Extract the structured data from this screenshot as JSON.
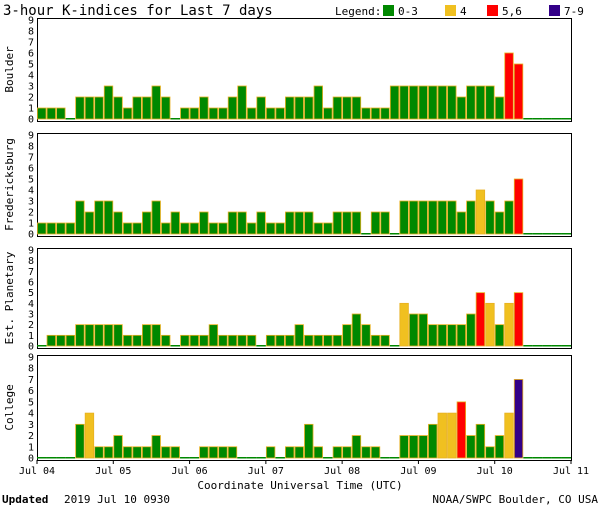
{
  "chart_data": {
    "type": "bar",
    "title": "3-hour K-indices for Last 7 days",
    "xlabel": "Coordinate Universal Time (UTC)",
    "ylim": [
      0,
      9
    ],
    "yticks": [
      "0",
      "1",
      "2",
      "3",
      "4",
      "5",
      "6",
      "7",
      "8",
      "9"
    ],
    "x_ticks": [
      "Jul 04",
      "Jul 05",
      "Jul 06",
      "Jul 07",
      "Jul 08",
      "Jul 09",
      "Jul 10",
      "Jul 11"
    ],
    "legend": {
      "label": "Legend:",
      "placement": "top-right",
      "entries": [
        {
          "label": "0-3",
          "color": "#008800"
        },
        {
          "label": "4",
          "color": "#f0c020"
        },
        {
          "label": "5,6",
          "color": "#ff0000"
        },
        {
          "label": "7-9",
          "color": "#330088"
        }
      ]
    },
    "panels": [
      {
        "name": "Boulder",
        "values": [
          1,
          1,
          1,
          0,
          2,
          2,
          2,
          3,
          2,
          1,
          2,
          2,
          3,
          2,
          0,
          1,
          1,
          2,
          1,
          1,
          2,
          3,
          1,
          2,
          1,
          1,
          2,
          2,
          2,
          3,
          1,
          2,
          2,
          2,
          1,
          1,
          1,
          3,
          3,
          3,
          3,
          3,
          3,
          3,
          2,
          3,
          3,
          3,
          2,
          6,
          5,
          0,
          0,
          0,
          0,
          0
        ]
      },
      {
        "name": "Fredericksburg",
        "values": [
          1,
          1,
          1,
          1,
          3,
          2,
          3,
          3,
          2,
          1,
          1,
          2,
          3,
          1,
          2,
          1,
          1,
          2,
          1,
          1,
          2,
          2,
          1,
          2,
          1,
          1,
          2,
          2,
          2,
          1,
          1,
          2,
          2,
          2,
          0,
          2,
          2,
          0,
          3,
          3,
          3,
          3,
          3,
          3,
          2,
          3,
          4,
          3,
          2,
          3,
          5,
          0,
          0,
          0,
          0,
          0
        ]
      },
      {
        "name": "Est. Planetary",
        "values": [
          0,
          1,
          1,
          1,
          2,
          2,
          2,
          2,
          2,
          1,
          1,
          2,
          2,
          1,
          0,
          1,
          1,
          1,
          2,
          1,
          1,
          1,
          1,
          0,
          1,
          1,
          1,
          2,
          1,
          1,
          1,
          1,
          2,
          3,
          2,
          1,
          1,
          0,
          4,
          3,
          3,
          2,
          2,
          2,
          2,
          3,
          5,
          4,
          2,
          4,
          5,
          0,
          0,
          0,
          0,
          0
        ]
      },
      {
        "name": "College",
        "values": [
          0,
          0,
          0,
          0,
          3,
          4,
          1,
          1,
          2,
          1,
          1,
          1,
          2,
          1,
          1,
          0,
          0,
          1,
          1,
          1,
          1,
          0,
          0,
          0,
          1,
          0,
          1,
          1,
          3,
          1,
          0,
          1,
          1,
          2,
          1,
          1,
          0,
          0,
          2,
          2,
          2,
          3,
          4,
          4,
          5,
          2,
          3,
          1,
          2,
          4,
          7,
          0,
          0,
          0,
          0,
          0
        ]
      }
    ]
  },
  "footer": {
    "updated_label": "Updated",
    "updated_time": "2019 Jul 10 0930",
    "credit": "NOAA/SWPC Boulder, CO USA"
  }
}
